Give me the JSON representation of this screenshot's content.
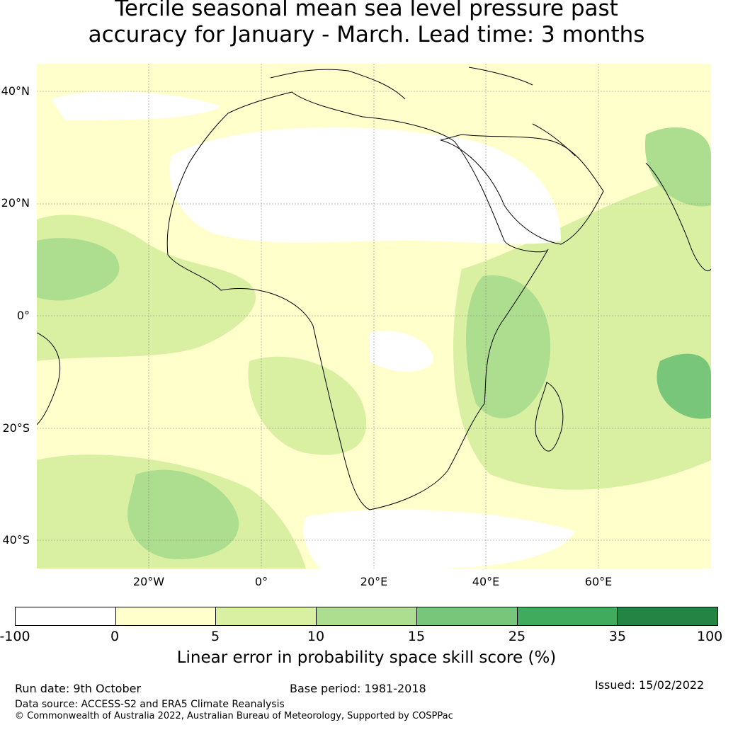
{
  "title_line1": "Tercile seasonal mean sea level pressure past",
  "title_line2": "accuracy for January - March. Lead time: 3 months",
  "map": {
    "lat_labels": [
      "40°N",
      "20°N",
      "0°",
      "20°S",
      "40°S"
    ],
    "lon_labels": [
      "20°W",
      "0°",
      "20°E",
      "40°E",
      "60°E"
    ],
    "extent": {
      "lon_min": -40,
      "lon_max": 80,
      "lat_min": -45,
      "lat_max": 45
    }
  },
  "colorbar": {
    "ticks": [
      "-100",
      "0",
      "5",
      "10",
      "15",
      "25",
      "35",
      "100"
    ],
    "colors": [
      "#ffffff",
      "#ffffcc",
      "#d9f0a3",
      "#addd8e",
      "#78c679",
      "#41ab5d",
      "#238443"
    ],
    "label": "Linear error in probability space skill score (%)"
  },
  "footer": {
    "run_date": "Run date: 9th October",
    "base_period": "Base period: 1981-2018",
    "issued": "Issued: 15/02/2022",
    "data_source": "Data source: ACCESS-S2 and ERA5 Climate Reanalysis",
    "copyright": "© Commonwealth of Australia 2022, Australian Bureau of Meteorology, Supported by COSPPac"
  }
}
